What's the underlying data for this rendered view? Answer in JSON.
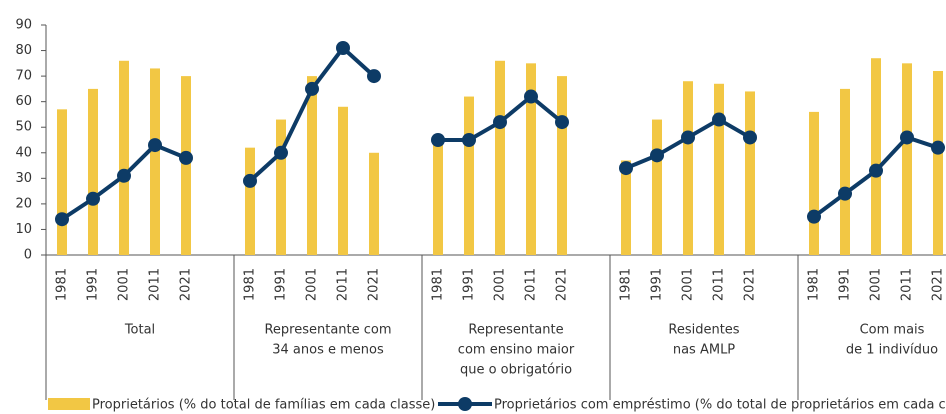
{
  "chart_data": {
    "type": "bar-line",
    "categories": [
      "1981",
      "1991",
      "2001",
      "2011",
      "2021",
      "1981",
      "1991",
      "2001",
      "2011",
      "2021",
      "1981",
      "1991",
      "2001",
      "2011",
      "2021",
      "1981",
      "1991",
      "2001",
      "2011",
      "2021",
      "1981",
      "1991",
      "2001",
      "2011",
      "2021"
    ],
    "groups": [
      [
        "Total"
      ],
      [
        "Representante com",
        "34 anos e menos"
      ],
      [
        "Representante",
        "com ensino maior",
        "que o obrigatório"
      ],
      [
        "Residentes",
        "nas AMLP"
      ],
      [
        "Com mais",
        "de 1 indivíduo"
      ]
    ],
    "series": [
      {
        "name": "Proprietários (% do total de famílias em cada classe)",
        "type": "bar",
        "color": "#f2c744",
        "values": [
          57,
          65,
          76,
          73,
          70,
          42,
          53,
          70,
          58,
          40,
          45,
          62,
          76,
          75,
          70,
          37,
          53,
          68,
          67,
          64,
          56,
          65,
          77,
          75,
          72
        ]
      },
      {
        "name": "Proprietários com empréstimo (% do total de proprietários em cada classe)",
        "type": "line",
        "color": "#0d3b66",
        "values": [
          14,
          22,
          31,
          43,
          38,
          29,
          40,
          65,
          81,
          70,
          45,
          45,
          52,
          62,
          52,
          34,
          39,
          46,
          53,
          46,
          15,
          24,
          33,
          46,
          42
        ]
      }
    ],
    "ylim": [
      0,
      90
    ],
    "yticks": [
      0,
      10,
      20,
      30,
      40,
      50,
      60,
      70,
      80,
      90
    ]
  }
}
